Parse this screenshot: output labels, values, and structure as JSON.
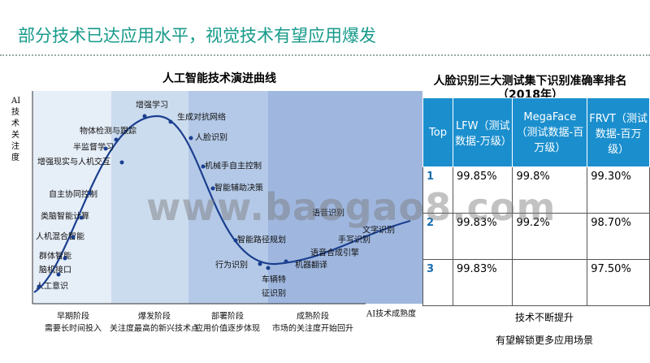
{
  "header": {
    "title": "部分技术已达应用水平，视觉技术有望应用爆发"
  },
  "curve": {
    "title": "人工智能技术演进曲线",
    "y_axis": "AI技术关注度",
    "x_axis": "AI技术成熟度",
    "points": [
      "增强学习",
      "生成对抗网络",
      "物体检测与跟踪",
      "人脸识别",
      "半监督学习",
      "增强现实与人机交互",
      "机械手自主控制",
      "自主协同控制",
      "智能辅助决策",
      "类脑智能计算",
      "人机混合智能",
      "群体智能",
      "脑机接口",
      "人工意识",
      "智能路径规划",
      "行为识别",
      "车辆特",
      "征识别",
      "机器翻译",
      "语音合成引擎",
      "手写识别",
      "文字识别",
      "语音识别"
    ],
    "phases": [
      {
        "name": "早期阶段",
        "note": "需要长时间投入"
      },
      {
        "name": "爆发阶段",
        "note": "关注度最高的新兴技术点"
      },
      {
        "name": "部署阶段",
        "note": "应用价值逐步体现"
      },
      {
        "name": "成熟阶段",
        "note": "市场的关注度开始回升"
      }
    ]
  },
  "table": {
    "title": "人脸识别三大测试集下识别准确率排名（2018年）",
    "header": [
      "Top",
      "LFW（测试数据-万级）",
      "MegaFace（测试数据-百万级）",
      "FRVT（测试数据-百万级）"
    ],
    "rows": [
      [
        "1",
        "99.85%",
        "99.8%",
        "99.30%"
      ],
      [
        "2",
        "99.83%",
        "99.2%",
        "98.70%"
      ],
      [
        "3",
        "99.83%",
        null,
        "97.50%"
      ]
    ],
    "notes": [
      "技术不断提升",
      "有望解锁更多应用场景"
    ]
  },
  "watermark": "www.baogao8.com"
}
